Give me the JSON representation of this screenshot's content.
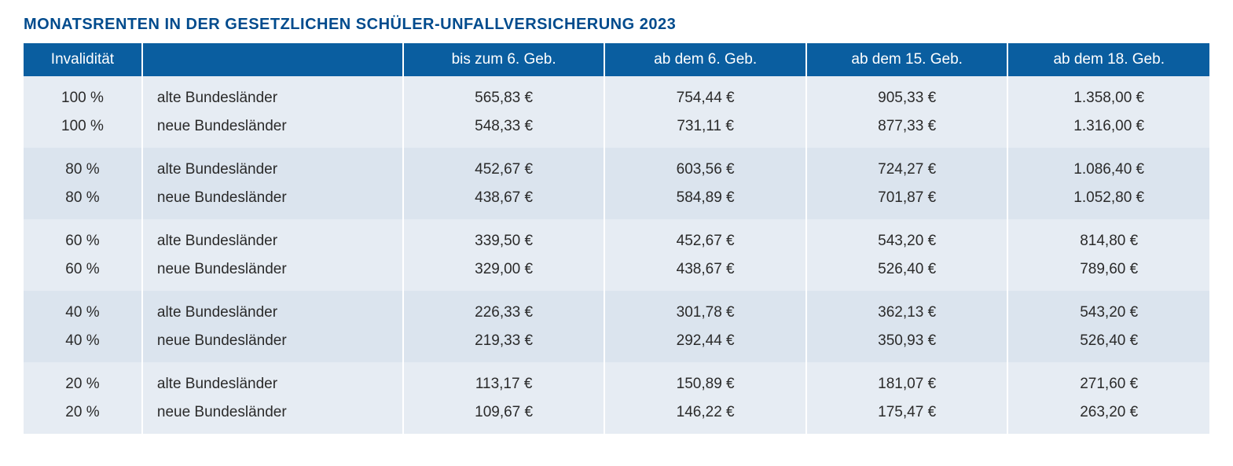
{
  "title": "MONATSRENTEN IN DER GESETZLICHEN SCHÜLER-UNFALLVERSICHERUNG 2023",
  "table": {
    "type": "table",
    "header_bg": "#0a5ea0",
    "header_fg": "#ffffff",
    "row_bg_odd": "#e6ecf3",
    "row_bg_even": "#dbe4ee",
    "text_color": "#2a2a2a",
    "title_color": "#004b8d",
    "columns": [
      {
        "label": "Invalidität",
        "key": "inv",
        "align": "center",
        "width_pct": 10
      },
      {
        "label": "",
        "key": "region",
        "align": "left",
        "width_pct": 22
      },
      {
        "label": "bis zum 6. Geb.",
        "key": "c1",
        "align": "center",
        "width_pct": 17
      },
      {
        "label": "ab dem 6. Geb.",
        "key": "c2",
        "align": "center",
        "width_pct": 17
      },
      {
        "label": "ab dem 15. Geb.",
        "key": "c3",
        "align": "center",
        "width_pct": 17
      },
      {
        "label": "ab dem 18. Geb.",
        "key": "c4",
        "align": "center",
        "width_pct": 17
      }
    ],
    "groups": [
      {
        "rows": [
          {
            "inv": "100 %",
            "region": "alte Bundesländer",
            "c1": "565,83 €",
            "c2": "754,44 €",
            "c3": "905,33 €",
            "c4": "1.358,00 €"
          },
          {
            "inv": "100 %",
            "region": "neue Bundesländer",
            "c1": "548,33 €",
            "c2": "731,11 €",
            "c3": "877,33 €",
            "c4": "1.316,00 €"
          }
        ]
      },
      {
        "rows": [
          {
            "inv": "80 %",
            "region": "alte Bundesländer",
            "c1": "452,67 €",
            "c2": "603,56 €",
            "c3": "724,27 €",
            "c4": "1.086,40 €"
          },
          {
            "inv": "80 %",
            "region": "neue Bundesländer",
            "c1": "438,67 €",
            "c2": "584,89 €",
            "c3": "701,87 €",
            "c4": "1.052,80 €"
          }
        ]
      },
      {
        "rows": [
          {
            "inv": "60 %",
            "region": "alte Bundesländer",
            "c1": "339,50 €",
            "c2": "452,67 €",
            "c3": "543,20 €",
            "c4": "814,80 €"
          },
          {
            "inv": "60 %",
            "region": "neue Bundesländer",
            "c1": "329,00 €",
            "c2": "438,67 €",
            "c3": "526,40 €",
            "c4": "789,60 €"
          }
        ]
      },
      {
        "rows": [
          {
            "inv": "40 %",
            "region": "alte Bundesländer",
            "c1": "226,33 €",
            "c2": "301,78 €",
            "c3": "362,13 €",
            "c4": "543,20 €"
          },
          {
            "inv": "40 %",
            "region": "neue Bundesländer",
            "c1": "219,33 €",
            "c2": "292,44 €",
            "c3": "350,93 €",
            "c4": "526,40 €"
          }
        ]
      },
      {
        "rows": [
          {
            "inv": "20 %",
            "region": "alte Bundesländer",
            "c1": "113,17 €",
            "c2": "150,89 €",
            "c3": "181,07 €",
            "c4": "271,60 €"
          },
          {
            "inv": "20 %",
            "region": "neue Bundesländer",
            "c1": "109,67 €",
            "c2": "146,22 €",
            "c3": "175,47 €",
            "c4": "263,20 €"
          }
        ]
      }
    ]
  }
}
